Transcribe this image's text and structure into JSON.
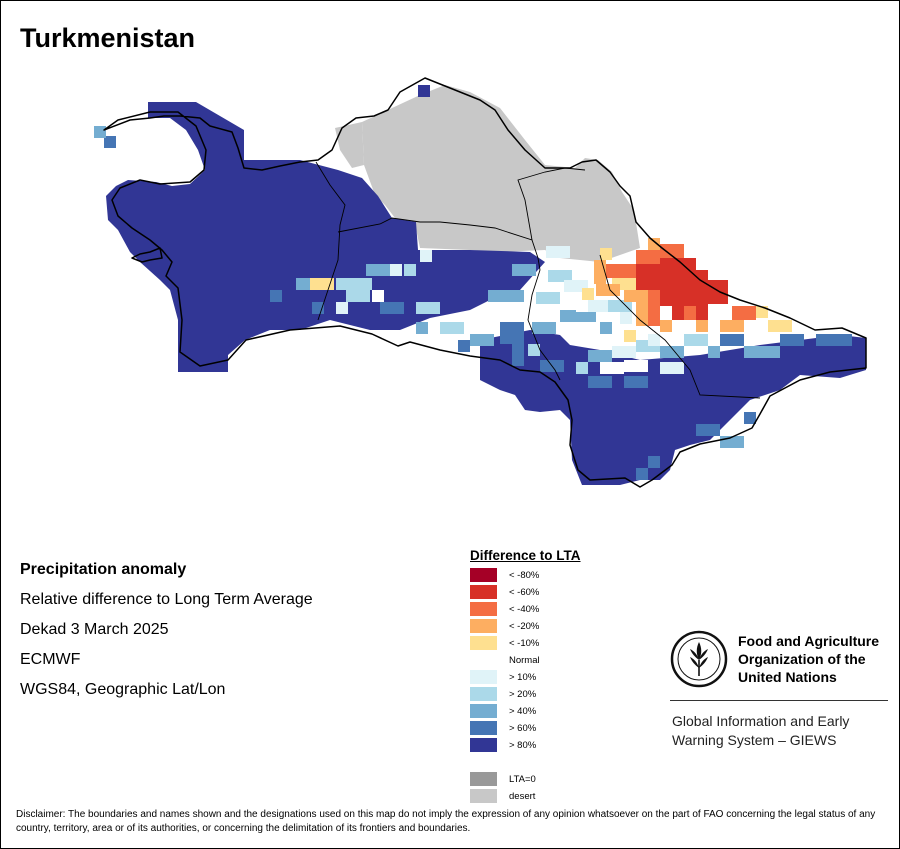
{
  "title": "Turkmenistan",
  "info": {
    "heading": "Precipitation anomaly",
    "line1": "Relative difference to Long Term Average",
    "line2": "Dekad 3 March 2025",
    "line3": "ECMWF",
    "line4": "WGS84, Geographic Lat/Lon"
  },
  "legend": {
    "title": "Difference to LTA",
    "items": [
      {
        "label": "< -80%",
        "color": "#a50026"
      },
      {
        "label": "< -60%",
        "color": "#d73027"
      },
      {
        "label": "< -40%",
        "color": "#f46d43"
      },
      {
        "label": "< -20%",
        "color": "#fdae61"
      },
      {
        "label": "< -10%",
        "color": "#fee090"
      },
      {
        "label": "Normal",
        "color": "#ffffff"
      },
      {
        "label": "> 10%",
        "color": "#e0f3f8"
      },
      {
        "label": "> 20%",
        "color": "#abd9e9"
      },
      {
        "label": "> 40%",
        "color": "#74add1"
      },
      {
        "label": "> 60%",
        "color": "#4575b4"
      },
      {
        "label": "> 80%",
        "color": "#313695"
      },
      {
        "label": "",
        "color": "#ffffff"
      },
      {
        "label": "LTA=0",
        "color": "#999999"
      },
      {
        "label": "desert",
        "color": "#c8c8c8"
      }
    ]
  },
  "fao": {
    "name_line1": "Food and Agriculture",
    "name_line2": "Organization of the",
    "name_line3": "United Nations",
    "logo_text": "FAO",
    "motto": "FIAT PANIS",
    "giews_line1": "Global Information and Early",
    "giews_line2": "Warning System – GIEWS"
  },
  "disclaimer": "Disclaimer: The boundaries and names shown and the designations used on this map do not imply the expression of any opinion whatsoever on the part of FAO concerning the legal status of any country, territory, area or of its authorities, or concerning the delimitation of its frontiers and boundaries."
}
